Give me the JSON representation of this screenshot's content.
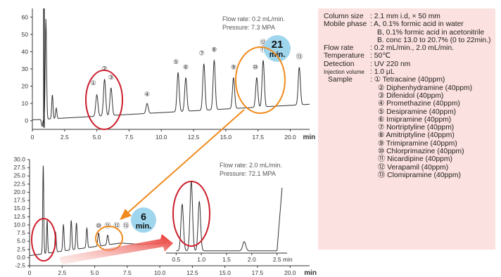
{
  "chart_data": [
    {
      "type": "line",
      "xlabel": "min",
      "xlim": [
        0,
        21.5
      ],
      "ylim": [
        -5,
        65
      ],
      "xticks": [
        "0",
        "2.5",
        "5.0",
        "7.5",
        "10.0",
        "12.5",
        "15.0",
        "17.5",
        "20.0"
      ],
      "yticks": [
        "0",
        "10",
        "20",
        "30",
        "40",
        "50",
        "60"
      ],
      "annotation_lines": [
        "Flow rate: 0.2 mL/min.",
        "Pressure: 7.3 MPA"
      ],
      "time_label": {
        "value": "21",
        "unit": "min."
      },
      "peaks": [
        {
          "label": "①",
          "x": 5.0,
          "y": 15
        },
        {
          "label": "②",
          "x": 5.6,
          "y": 24
        },
        {
          "label": "③",
          "x": 6.1,
          "y": 19
        },
        {
          "label": "④",
          "x": 8.9,
          "y": 10
        },
        {
          "label": "⑤",
          "x": 11.3,
          "y": 28
        },
        {
          "label": "⑥",
          "x": 11.9,
          "y": 25
        },
        {
          "label": "⑦",
          "x": 13.3,
          "y": 33
        },
        {
          "label": "⑧",
          "x": 14.1,
          "y": 35
        },
        {
          "label": "⑨",
          "x": 15.6,
          "y": 25
        },
        {
          "label": "⑩",
          "x": 17.4,
          "y": 25
        },
        {
          "label": "⑪",
          "x": 17.9,
          "y": 35
        },
        {
          "label": "⑫",
          "x": 17.9,
          "y": 35
        },
        {
          "label": "⑬",
          "x": 20.7,
          "y": 31
        }
      ]
    },
    {
      "type": "line",
      "xlabel": "min",
      "xlim": [
        0,
        21.5
      ],
      "ylim": [
        -2.5,
        30
      ],
      "xticks": [
        "0",
        "2.5",
        "5.0",
        "7.5",
        "10.0",
        "12.5",
        "15.0",
        "17.5",
        "20.0"
      ],
      "yticks": [
        "-2.5",
        "0.0",
        "2.5",
        "5.0",
        "7.5",
        "10.0",
        "12.5",
        "15.0",
        "17.5",
        "20.0",
        "22.5",
        "25.0",
        "27.5",
        "30.0"
      ],
      "annotation_lines": [
        "Flow rate: 2.0 mL/min.",
        "Pressure: 72.1 MPA"
      ],
      "time_label": {
        "value": "6",
        "unit": "min."
      },
      "peak_labels": [
        "⑩",
        "⑪",
        "⑫",
        "⑬"
      ]
    },
    {
      "type": "line",
      "role": "inset",
      "xlabel": "min",
      "xlim": [
        0.3,
        2.7
      ],
      "ylim": [
        0,
        25
      ],
      "xticks": [
        "0.5",
        "1.0",
        "1.5",
        "2.0",
        "2.5"
      ],
      "peaks": [
        {
          "x": 0.62,
          "y": 17
        },
        {
          "x": 0.8,
          "y": 25
        },
        {
          "x": 0.96,
          "y": 18
        },
        {
          "x": 1.85,
          "y": 4
        }
      ]
    }
  ],
  "colors": {
    "trace": "#333333",
    "red_circle": "#cc1f2c",
    "orange_circle": "#f08a1c",
    "bubble": "#9fd6ee",
    "panel_bg": "#fbe1df",
    "arrow_red": "#e8302a"
  },
  "conditions": {
    "column_size_label": "Column size",
    "column_size": "2.1 mm i.d, × 50 mm",
    "mobile_phase_label": "Mobile phase",
    "mobile_phase_a": "A, 0.1% formic acid in water",
    "mobile_phase_b": "B, 0.1% formic acid in acetonitrile",
    "mobile_phase_conc": "B. conc 13.0 to 20.7% (0 to 22min.)",
    "flow_rate_label": "Flow rate",
    "flow_rate": "0.2 mL/min., 2.0 mL/min.",
    "temperature_label": "Temperature",
    "temperature": "50℃",
    "detection_label": "Detection",
    "detection": "UV 220 nm",
    "injection_label": "Injection volume",
    "injection": "1.0 μL",
    "sample_label": "Sample",
    "samples": [
      "① Tetracaine (40ppm)",
      "② Diphenhydramine (40ppm)",
      "③ Difenidol (40ppm)",
      "④ Promethazine (40ppm)",
      "⑤ Desipramine (40ppm)",
      "⑥ Imipramine (40ppm)",
      "⑦ Nortriptyline (40ppm)",
      "⑧ Amitriptyline (40ppm)",
      "⑨ Trimipramine (40ppm)",
      "⑩ Chlorprimazine (40ppm)",
      "⑪ Nicardipine (40ppm)",
      "⑫ Verapamil (40ppm)",
      "⑬ Clomipramine (40ppm)"
    ]
  }
}
